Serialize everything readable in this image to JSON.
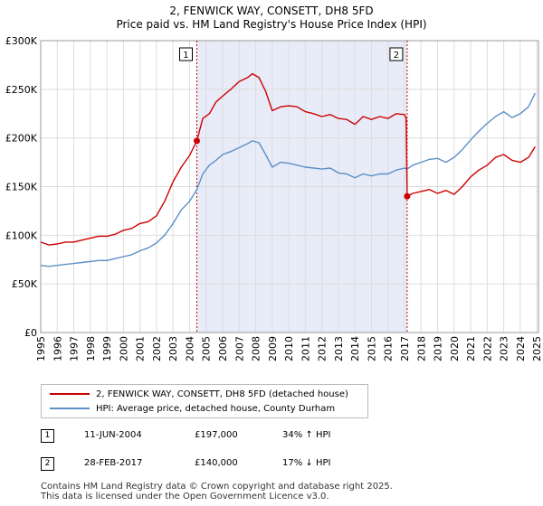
{
  "chart_data": {
    "type": "line",
    "title": "2, FENWICK WAY, CONSETT, DH8 5FD",
    "subtitle": "Price paid vs. HM Land Registry's House Price Index (HPI)",
    "xlabel": "",
    "ylabel": "",
    "xlim": [
      1995,
      2025.1
    ],
    "ylim": [
      0,
      300000
    ],
    "y_ticks": [
      0,
      50000,
      100000,
      150000,
      200000,
      250000,
      300000
    ],
    "y_tick_labels": [
      "£0",
      "£50K",
      "£100K",
      "£150K",
      "£200K",
      "£250K",
      "£300K"
    ],
    "x_ticks": [
      1995,
      1996,
      1997,
      1998,
      1999,
      2000,
      2001,
      2002,
      2003,
      2004,
      2005,
      2006,
      2007,
      2008,
      2009,
      2010,
      2011,
      2012,
      2013,
      2014,
      2015,
      2016,
      2017,
      2018,
      2019,
      2020,
      2021,
      2022,
      2023,
      2024,
      2025
    ],
    "x_tick_labels": [
      "1995",
      "1996",
      "1997",
      "1998",
      "1999",
      "2000",
      "2001",
      "2002",
      "2003",
      "2004",
      "2005",
      "2006",
      "2007",
      "2008",
      "2009",
      "2010",
      "2011",
      "2012",
      "2013",
      "2014",
      "2015",
      "2016",
      "2017",
      "2018",
      "2019",
      "2020",
      "2021",
      "2022",
      "2023",
      "2024",
      "2025"
    ],
    "grid": true,
    "shaded_region": [
      2004.44,
      2017.16
    ],
    "series": [
      {
        "name": "2, FENWICK WAY, CONSETT, DH8 5FD (detached house)",
        "color": "#cc0000",
        "x": [
          1995,
          1995.5,
          1996,
          1996.5,
          1997,
          1997.5,
          1998,
          1998.5,
          1999,
          1999.5,
          2000,
          2000.5,
          2001,
          2001.5,
          2002,
          2002.5,
          2003,
          2003.5,
          2004,
          2004.44,
          2004.8,
          2005.2,
          2005.6,
          2006,
          2006.5,
          2007,
          2007.5,
          2007.8,
          2008.2,
          2008.6,
          2009,
          2009.5,
          2010,
          2010.5,
          2011,
          2011.5,
          2012,
          2012.5,
          2013,
          2013.5,
          2014,
          2014.5,
          2015,
          2015.5,
          2016,
          2016.5,
          2017.0,
          2017.1,
          2017.16,
          2017.5,
          2018,
          2018.5,
          2019,
          2019.5,
          2020,
          2020.5,
          2021,
          2021.5,
          2022,
          2022.5,
          2023,
          2023.5,
          2024,
          2024.5,
          2024.9
        ],
        "values": [
          93000,
          90000,
          91000,
          93000,
          93000,
          95000,
          97000,
          99000,
          99000,
          101000,
          105000,
          107000,
          112000,
          114000,
          120000,
          135000,
          155000,
          170000,
          182000,
          197000,
          220000,
          225000,
          237000,
          243000,
          250000,
          258000,
          262000,
          266000,
          262000,
          248000,
          228000,
          232000,
          233000,
          232000,
          227000,
          225000,
          222000,
          224000,
          220000,
          219000,
          214000,
          222000,
          219000,
          222000,
          220000,
          225000,
          224000,
          220000,
          140000,
          143000,
          145000,
          147000,
          143000,
          146000,
          142000,
          150000,
          160000,
          167000,
          172000,
          180000,
          183000,
          177000,
          175000,
          180000,
          191000
        ]
      },
      {
        "name": "HPI: Average price, detached house, County Durham",
        "color": "#5b8fc7",
        "x": [
          1995,
          1995.5,
          1996,
          1996.5,
          1997,
          1997.5,
          1998,
          1998.5,
          1999,
          1999.5,
          2000,
          2000.5,
          2001,
          2001.5,
          2002,
          2002.5,
          2003,
          2003.5,
          2004,
          2004.44,
          2004.8,
          2005.2,
          2005.6,
          2006,
          2006.5,
          2007,
          2007.5,
          2007.8,
          2008.2,
          2008.6,
          2009,
          2009.5,
          2010,
          2010.5,
          2011,
          2011.5,
          2012,
          2012.5,
          2013,
          2013.5,
          2014,
          2014.5,
          2015,
          2015.5,
          2016,
          2016.5,
          2017.0,
          2017.16,
          2017.5,
          2018,
          2018.5,
          2019,
          2019.5,
          2020,
          2020.5,
          2021,
          2021.5,
          2022,
          2022.5,
          2023,
          2023.5,
          2024,
          2024.5,
          2024.9
        ],
        "values": [
          69000,
          68000,
          69000,
          70000,
          71000,
          72000,
          73000,
          74000,
          74000,
          76000,
          78000,
          80000,
          84000,
          87000,
          92000,
          100000,
          112000,
          126000,
          135000,
          147000,
          163000,
          172000,
          177000,
          183000,
          186000,
          190000,
          194000,
          197000,
          195000,
          183000,
          170000,
          175000,
          174000,
          172000,
          170000,
          169000,
          168000,
          169000,
          164000,
          163000,
          159000,
          163000,
          161000,
          163000,
          163000,
          167000,
          169000,
          168000,
          172000,
          175000,
          178000,
          179000,
          175000,
          180000,
          188000,
          198000,
          207000,
          215000,
          222000,
          227000,
          221000,
          225000,
          232000,
          246000
        ]
      }
    ],
    "annotations": [
      {
        "label": "1",
        "x": 2004.44,
        "value": 197000
      },
      {
        "label": "2",
        "x": 2017.16,
        "value": 140000
      }
    ]
  },
  "legend": {
    "series1": "2, FENWICK WAY, CONSETT, DH8 5FD (detached house)",
    "series2": "HPI: Average price, detached house, County Durham"
  },
  "transactions": [
    {
      "num": "1",
      "date": "11-JUN-2004",
      "price": "£197,000",
      "hpi": "34% ↑ HPI"
    },
    {
      "num": "2",
      "date": "28-FEB-2017",
      "price": "£140,000",
      "hpi": "17% ↓ HPI"
    }
  ],
  "footer": {
    "line1": "Contains HM Land Registry data © Crown copyright and database right 2025.",
    "line2": "This data is licensed under the Open Government Licence v3.0."
  },
  "colors": {
    "red": "#cc0000",
    "blue": "#5b8fc7",
    "shade": "#e8ecf8",
    "grid": "#dddddd"
  }
}
